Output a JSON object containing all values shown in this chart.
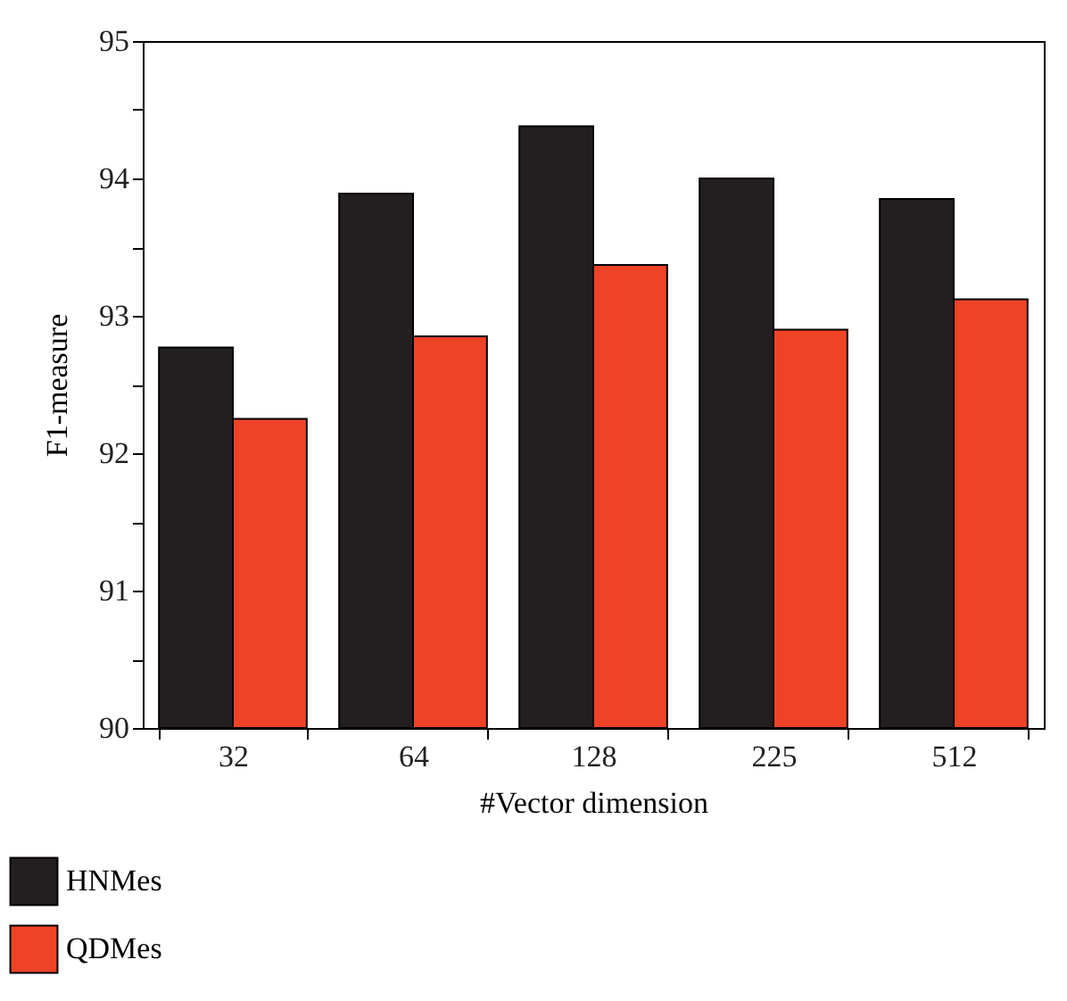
{
  "chart_data": {
    "type": "bar",
    "xlabel": "#Vector dimension",
    "ylabel": "F1-measure",
    "categories": [
      "32",
      "64",
      "128",
      "225",
      "512"
    ],
    "series": [
      {
        "name": "HNMes",
        "color": "#231f20",
        "values": [
          92.77,
          93.89,
          94.38,
          94.0,
          93.85
        ]
      },
      {
        "name": "QDMes",
        "color": "#ee4326",
        "values": [
          92.25,
          92.85,
          93.37,
          92.9,
          93.12
        ]
      }
    ],
    "ylim": [
      90,
      95
    ],
    "yticks": [
      90,
      {
        "value": 90.5,
        "label": null
      },
      91,
      {
        "value": 91.5,
        "label": null
      },
      92,
      {
        "value": 92.5,
        "label": null
      },
      93,
      {
        "value": 93.5,
        "label": null
      },
      94,
      {
        "value": 94.5,
        "label": null
      },
      95
    ],
    "grid": false,
    "legend": "bottom left"
  }
}
